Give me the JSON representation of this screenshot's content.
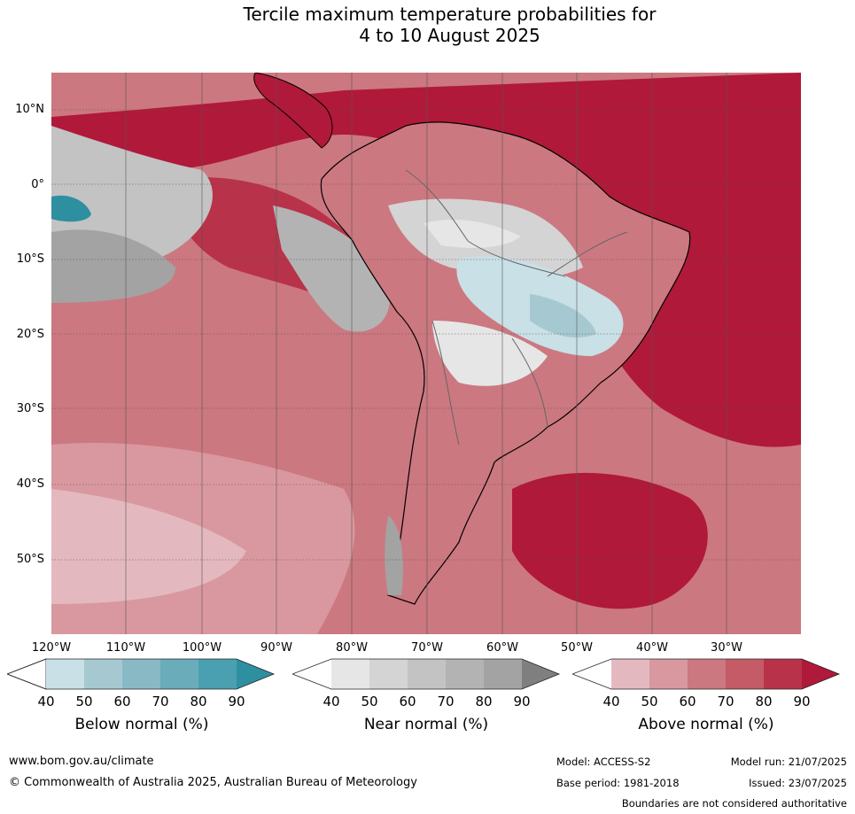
{
  "title": {
    "line1": "Tercile maximum temperature probabilities for",
    "line2": "4 to 10 August 2025"
  },
  "map": {
    "lat_labels": [
      "10°N",
      "0°",
      "10°S",
      "20°S",
      "30°S",
      "40°S",
      "50°S"
    ],
    "lon_labels": [
      "120°W",
      "110°W",
      "100°W",
      "90°W",
      "80°W",
      "70°W",
      "60°W",
      "50°W",
      "40°W",
      "30°W"
    ]
  },
  "legends": [
    {
      "title": "Below normal (%)",
      "ticks": [
        "40",
        "50",
        "60",
        "70",
        "80",
        "90"
      ],
      "colors": [
        "#c8e0e6",
        "#a6c9d1",
        "#89b9c5",
        "#6aacba",
        "#4aa0b0",
        "#2e8fa1"
      ]
    },
    {
      "title": "Near normal (%)",
      "ticks": [
        "40",
        "50",
        "60",
        "70",
        "80",
        "90"
      ],
      "colors": [
        "#e6e6e6",
        "#d4d4d4",
        "#c3c3c3",
        "#b3b3b3",
        "#a3a3a3",
        "#7f7f7f"
      ]
    },
    {
      "title": "Above normal (%)",
      "ticks": [
        "40",
        "50",
        "60",
        "70",
        "80",
        "90"
      ],
      "colors": [
        "#e3b9bf",
        "#d9989f",
        "#cc7880",
        "#c45b66",
        "#b8324a",
        "#b0193a"
      ]
    }
  ],
  "footer": {
    "website": "www.bom.gov.au/climate",
    "copyright": "© Commonwealth of Australia 2025, Australian Bureau of Meteorology",
    "model": "Model: ACCESS-S2",
    "model_run": "Model run: 21/07/2025",
    "base_period": "Base period: 1981-2018",
    "issued": "Issued: 23/07/2025",
    "disclaimer": "Boundaries are not considered authoritative"
  }
}
